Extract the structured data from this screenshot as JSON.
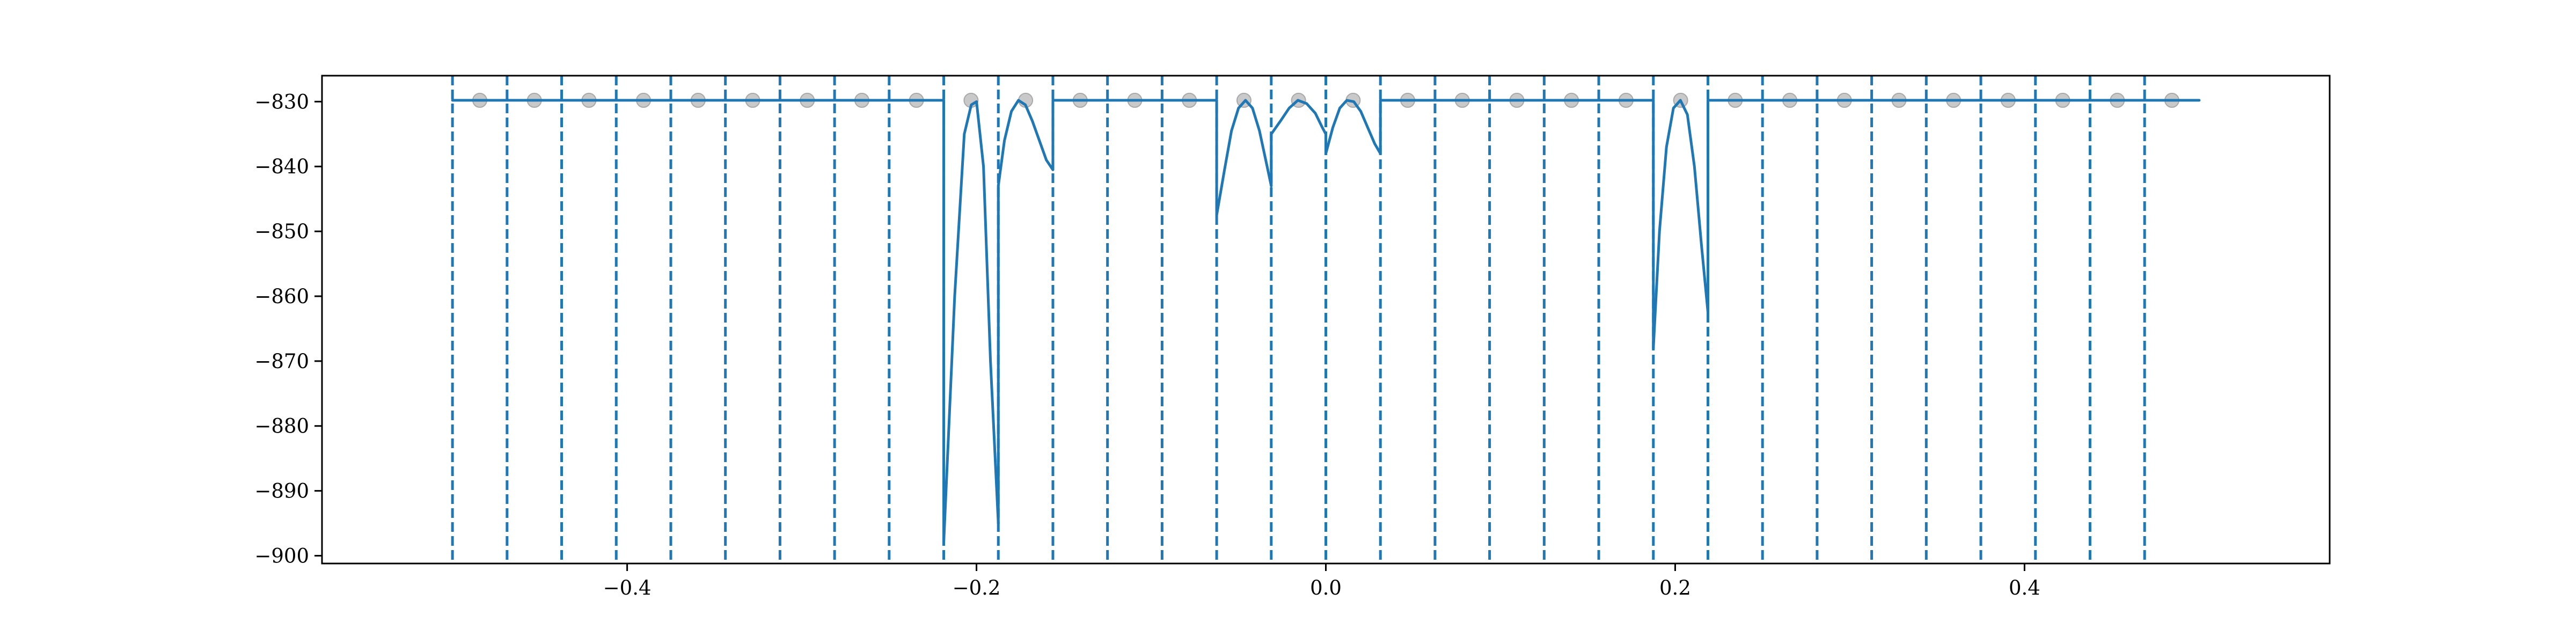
{
  "chart_data": {
    "type": "line",
    "title": "",
    "xlabel": "",
    "ylabel": "",
    "xlim": [
      -0.5747,
      0.5747
    ],
    "ylim": [
      -901.2,
      -826.0
    ],
    "grid": false,
    "x_ticks": [
      -0.4,
      -0.2,
      0.0,
      0.2,
      0.4
    ],
    "x_tick_labels": [
      "−0.4",
      "−0.2",
      "0.0",
      "0.2",
      "0.4"
    ],
    "y_ticks": [
      -830,
      -840,
      -850,
      -860,
      -870,
      -880,
      -890,
      -900
    ],
    "y_tick_labels": [
      "−830",
      "−840",
      "−850",
      "−860",
      "−870",
      "−880",
      "−890",
      "−900"
    ],
    "boundaries": [
      -0.5,
      -0.46875,
      -0.4375,
      -0.40625,
      -0.375,
      -0.34375,
      -0.3125,
      -0.28125,
      -0.25,
      -0.21875,
      -0.1875,
      -0.15625,
      -0.125,
      -0.09375,
      -0.0625,
      -0.03125,
      0.0,
      0.03125,
      0.0625,
      0.09375,
      0.125,
      0.15625,
      0.1875,
      0.21875,
      0.25,
      0.28125,
      0.3125,
      0.34375,
      0.375,
      0.40625,
      0.4375,
      0.46875
    ],
    "markers": {
      "x": [
        -0.484375,
        -0.453125,
        -0.421875,
        -0.390625,
        -0.359375,
        -0.328125,
        -0.296875,
        -0.265625,
        -0.234375,
        -0.203125,
        -0.171875,
        -0.140625,
        -0.109375,
        -0.078125,
        -0.046875,
        -0.015625,
        0.015625,
        0.046875,
        0.078125,
        0.109375,
        0.140625,
        0.171875,
        0.203125,
        0.234375,
        0.265625,
        0.296875,
        0.328125,
        0.359375,
        0.390625,
        0.421875,
        0.453125,
        0.484375
      ],
      "y": -829.8,
      "color": "#bfbfbf"
    },
    "series": [
      {
        "color": "#1f77b4",
        "segments": [
          {
            "x": [
              -0.5,
              -0.21875
            ],
            "y": [
              -829.8,
              -829.8
            ]
          },
          {
            "x": [
              -0.21875,
              -0.2125,
              -0.207,
              -0.203,
              -0.2,
              -0.196,
              -0.192,
              -0.1875
            ],
            "y": [
              -898.0,
              -860.0,
              -835.0,
              -830.5,
              -830.0,
              -840.0,
              -870.0,
              -895.0
            ]
          },
          {
            "x": [
              -0.1875,
              -0.184,
              -0.18,
              -0.176,
              -0.172,
              -0.168,
              -0.164,
              -0.16,
              -0.15625
            ],
            "y": [
              -843.0,
              -836.0,
              -831.5,
              -829.8,
              -830.5,
              -833.0,
              -836.0,
              -839.0,
              -840.5
            ]
          },
          {
            "x": [
              -0.15625,
              -0.0625
            ],
            "y": [
              -829.8,
              -829.8
            ]
          },
          {
            "x": [
              -0.0625,
              -0.058,
              -0.054,
              -0.05,
              -0.046,
              -0.042,
              -0.038,
              -0.034,
              -0.03125
            ],
            "y": [
              -847.5,
              -840.5,
              -834.5,
              -831.0,
              -829.8,
              -831.0,
              -834.5,
              -839.5,
              -843.0
            ]
          },
          {
            "x": [
              -0.03125,
              -0.026,
              -0.021,
              -0.016,
              -0.011,
              -0.006,
              -0.002,
              0.0
            ],
            "y": [
              -835.0,
              -833.0,
              -831.0,
              -829.8,
              -830.3,
              -831.8,
              -834.0,
              -835.0
            ]
          },
          {
            "x": [
              0.0,
              0.004,
              0.008,
              0.012,
              0.016,
              0.02,
              0.024,
              0.028,
              0.03125
            ],
            "y": [
              -838.0,
              -834.0,
              -831.0,
              -829.8,
              -830.0,
              -831.5,
              -834.0,
              -836.5,
              -838.0
            ]
          },
          {
            "x": [
              0.03125,
              0.1875
            ],
            "y": [
              -829.8,
              -829.8
            ]
          },
          {
            "x": [
              0.1875,
              0.191,
              0.195,
              0.199,
              0.203,
              0.207,
              0.211,
              0.215,
              0.21875
            ],
            "y": [
              -868.0,
              -850.0,
              -837.0,
              -831.0,
              -829.8,
              -832.0,
              -840.0,
              -852.0,
              -862.5
            ]
          },
          {
            "x": [
              0.21875,
              0.5
            ],
            "y": [
              -829.8,
              -829.8
            ]
          }
        ],
        "jumps": [
          -0.21875,
          -0.1875,
          -0.15625,
          -0.0625,
          -0.03125,
          0.0,
          0.03125,
          0.1875,
          0.21875
        ]
      }
    ]
  }
}
